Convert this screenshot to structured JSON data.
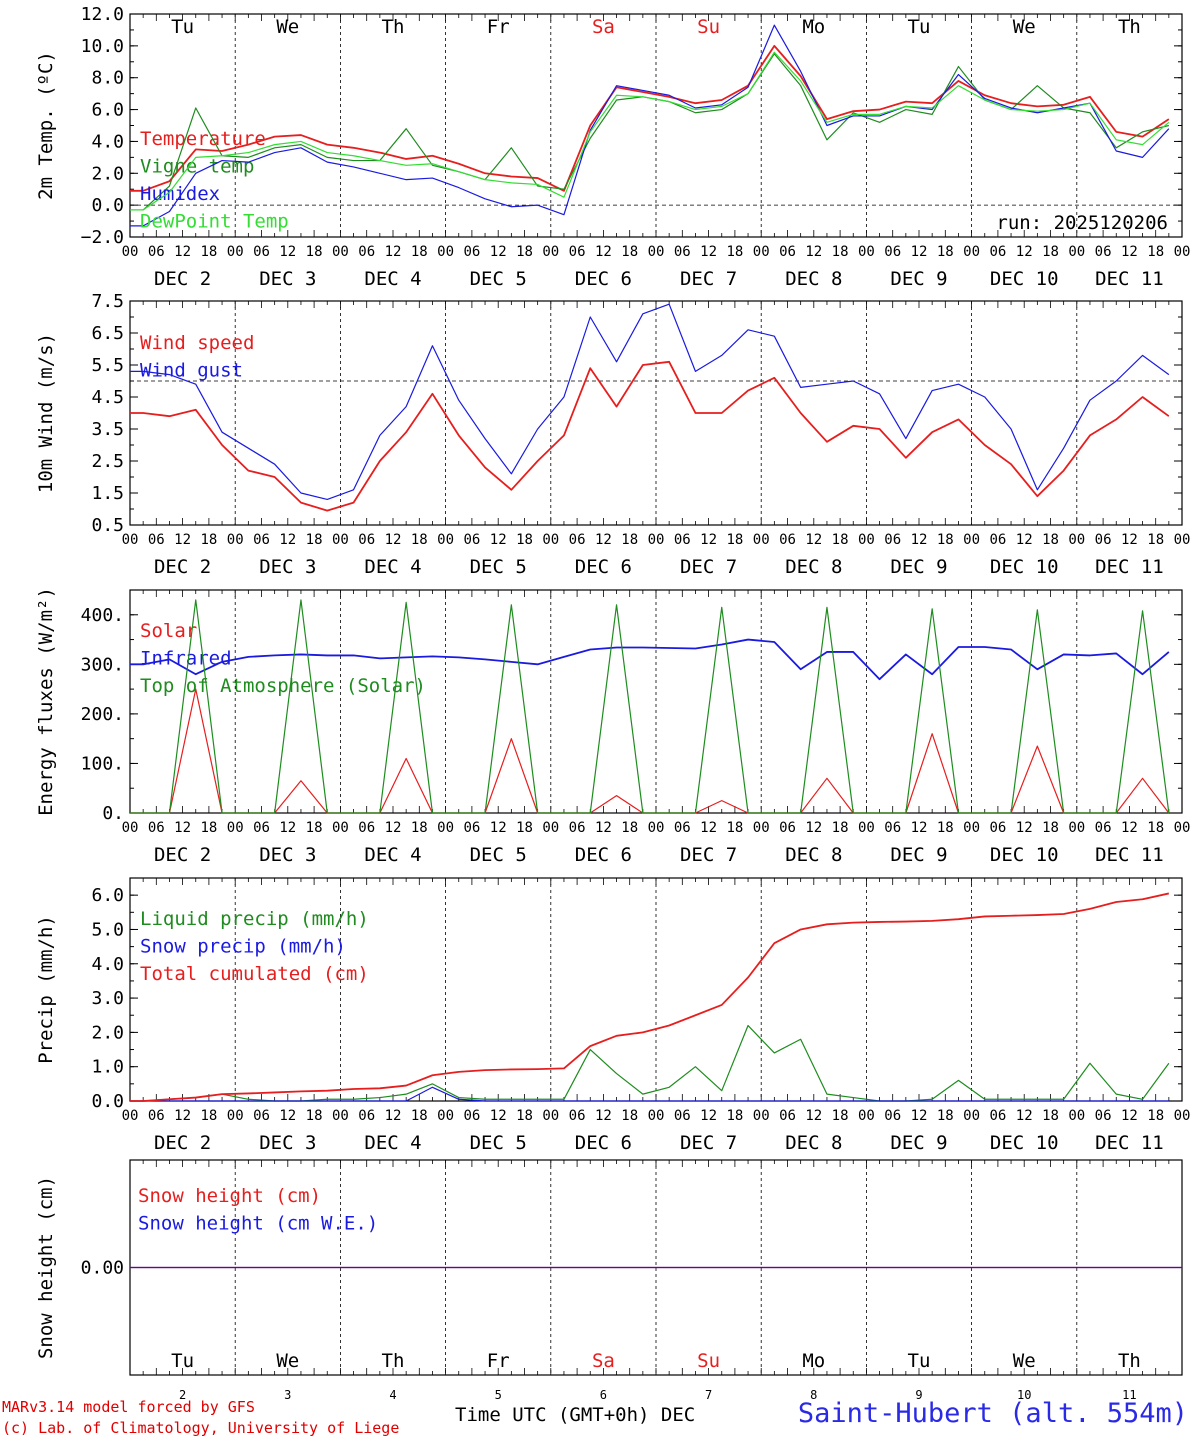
{
  "run_label": "run: 2025120206",
  "footer": {
    "credit_line1": "MARv3.14 model forced by GFS",
    "credit_line2": "(c) Lab. of Climatology, University of Liege",
    "xaxis_title": "Time UTC (GMT+0h) DEC",
    "station": "Saint-Hubert (alt. 554m)"
  },
  "colors": {
    "red": "#e61e1e",
    "blue": "#1a1ae0",
    "dark_green": "#1e8c1e",
    "light_green": "#33dd33",
    "weekend": "#e61e1e",
    "text": "#000000"
  },
  "chart_data": [
    {
      "id": "temperature",
      "type": "line",
      "ylabel": "2m Temp. (ºC)",
      "ylim": [
        -2,
        12
      ],
      "yticks": [
        "-2.0",
        "0.0",
        "2.0",
        "4.0",
        "6.0",
        "8.0",
        "10.0",
        "12.0"
      ],
      "reference_line": 0,
      "day_labels": [
        "Tu",
        "We",
        "Th",
        "Fr",
        "Sa",
        "Su",
        "Mo",
        "Tu",
        "We",
        "Th"
      ],
      "x_hours": [
        0,
        6,
        12,
        18,
        24,
        30,
        36,
        42,
        48,
        54,
        60,
        66,
        72,
        78,
        84,
        90,
        96,
        102,
        108,
        114,
        120,
        126,
        132,
        138,
        144,
        150,
        156,
        162,
        168,
        174,
        180,
        186,
        192,
        198,
        204,
        210,
        216,
        222,
        228,
        234
      ],
      "series": [
        {
          "name": "Temperature",
          "color": "red",
          "values": [
            0.9,
            1.5,
            3.5,
            3.4,
            3.8,
            4.3,
            4.4,
            3.8,
            3.6,
            3.3,
            2.9,
            3.1,
            2.6,
            2.0,
            1.8,
            1.7,
            0.9,
            5.0,
            7.4,
            7.1,
            6.8,
            6.4,
            6.6,
            7.5,
            10.0,
            8.1,
            5.4,
            5.9,
            6.0,
            6.5,
            6.4,
            7.8,
            6.9,
            6.4,
            6.2,
            6.3,
            6.8,
            4.6,
            4.3,
            5.4
          ]
        },
        {
          "name": "Vigne temp",
          "color": "dark_green",
          "values": [
            -0.3,
            1.2,
            6.1,
            3.1,
            3.0,
            3.6,
            3.8,
            3.0,
            2.8,
            2.8,
            4.8,
            2.5,
            2.1,
            1.6,
            3.6,
            1.2,
            1.0,
            4.2,
            6.6,
            6.8,
            6.5,
            5.8,
            6.0,
            7.0,
            9.5,
            7.5,
            4.1,
            5.8,
            5.2,
            6.0,
            5.7,
            8.7,
            6.6,
            6.0,
            7.5,
            6.1,
            5.8,
            3.6,
            4.6,
            5.0
          ]
        },
        {
          "name": "Humidex",
          "color": "blue",
          "values": [
            -1.3,
            -0.4,
            2.0,
            2.8,
            2.7,
            3.3,
            3.6,
            2.7,
            2.4,
            2.0,
            1.6,
            1.7,
            1.1,
            0.4,
            -0.1,
            0.0,
            -0.6,
            4.7,
            7.5,
            7.2,
            6.9,
            6.1,
            6.3,
            7.4,
            11.3,
            8.4,
            5.0,
            5.6,
            5.6,
            6.2,
            6.0,
            8.2,
            6.7,
            6.1,
            5.8,
            6.1,
            6.4,
            3.4,
            3.0,
            4.8
          ]
        },
        {
          "name": "DewPoint Temp",
          "color": "light_green",
          "values": [
            -0.3,
            0.8,
            3.0,
            3.1,
            3.3,
            3.8,
            4.0,
            3.3,
            3.1,
            2.8,
            2.5,
            2.6,
            2.1,
            1.6,
            1.4,
            1.3,
            0.5,
            4.6,
            6.9,
            6.8,
            6.5,
            6.0,
            6.2,
            7.0,
            9.6,
            7.8,
            5.2,
            5.7,
            5.7,
            6.2,
            6.1,
            7.5,
            6.6,
            6.0,
            5.9,
            6.0,
            6.4,
            4.1,
            3.8,
            5.2
          ]
        }
      ]
    },
    {
      "id": "wind",
      "type": "line",
      "ylabel": "10m Wind (m/s)",
      "ylim": [
        0.5,
        7.5
      ],
      "yticks": [
        "0.5",
        "1.5",
        "2.5",
        "3.5",
        "4.5",
        "5.5",
        "6.5",
        "7.5"
      ],
      "reference_line": 5.0,
      "x_hours": [
        0,
        6,
        12,
        18,
        24,
        30,
        36,
        42,
        48,
        54,
        60,
        66,
        72,
        78,
        84,
        90,
        96,
        102,
        108,
        114,
        120,
        126,
        132,
        138,
        144,
        150,
        156,
        162,
        168,
        174,
        180,
        186,
        192,
        198,
        204,
        210,
        216,
        222,
        228,
        234
      ],
      "series": [
        {
          "name": "Wind speed",
          "color": "red",
          "values": [
            4.0,
            3.9,
            4.1,
            3.0,
            2.2,
            2.0,
            1.2,
            0.95,
            1.2,
            2.5,
            3.4,
            4.6,
            3.3,
            2.3,
            1.6,
            2.5,
            3.3,
            5.4,
            4.2,
            5.5,
            5.6,
            4.0,
            4.0,
            4.7,
            5.1,
            4.0,
            3.1,
            3.6,
            3.5,
            2.6,
            3.4,
            3.8,
            3.0,
            2.4,
            1.4,
            2.2,
            3.3,
            3.8,
            4.5,
            3.9
          ]
        },
        {
          "name": "Wind gust",
          "color": "blue",
          "values": [
            5.3,
            5.2,
            4.9,
            3.4,
            2.9,
            2.4,
            1.5,
            1.3,
            1.6,
            3.3,
            4.2,
            6.1,
            4.4,
            3.2,
            2.1,
            3.5,
            4.5,
            7.0,
            5.6,
            7.1,
            7.4,
            5.3,
            5.8,
            6.6,
            6.4,
            4.8,
            4.9,
            5.0,
            4.6,
            3.2,
            4.7,
            4.9,
            4.5,
            3.5,
            1.6,
            2.9,
            4.4,
            5.0,
            5.8,
            5.2
          ]
        }
      ]
    },
    {
      "id": "energy",
      "type": "line",
      "ylabel": "Energy fluxes (W/m²)",
      "ylim": [
        0,
        450
      ],
      "yticks": [
        "0.",
        "100.",
        "200.",
        "300.",
        "400."
      ],
      "x_hours": [
        0,
        6,
        12,
        18,
        24,
        30,
        36,
        42,
        48,
        54,
        60,
        66,
        72,
        78,
        84,
        90,
        96,
        102,
        108,
        114,
        120,
        126,
        132,
        138,
        144,
        150,
        156,
        162,
        168,
        174,
        180,
        186,
        192,
        198,
        204,
        210,
        216,
        222,
        228,
        234
      ],
      "series": [
        {
          "name": "Solar",
          "color": "red",
          "values": [
            0,
            0,
            250,
            0,
            0,
            0,
            65,
            0,
            0,
            0,
            110,
            0,
            0,
            0,
            150,
            0,
            0,
            0,
            35,
            0,
            0,
            0,
            25,
            0,
            0,
            0,
            70,
            0,
            0,
            0,
            160,
            0,
            0,
            0,
            135,
            0,
            0,
            0,
            70,
            0
          ]
        },
        {
          "name": "Infrared",
          "color": "blue",
          "values": [
            300,
            310,
            280,
            305,
            315,
            318,
            320,
            318,
            318,
            312,
            314,
            316,
            314,
            310,
            305,
            300,
            315,
            330,
            334,
            334,
            333,
            332,
            340,
            350,
            345,
            290,
            325,
            325,
            270,
            320,
            280,
            335,
            335,
            330,
            290,
            320,
            318,
            322,
            280,
            325
          ]
        },
        {
          "name": "Top of Atmosphere (Solar)",
          "color": "dark_green",
          "values": [
            0,
            0,
            430,
            0,
            0,
            0,
            430,
            0,
            0,
            0,
            425,
            0,
            0,
            0,
            420,
            0,
            0,
            0,
            420,
            0,
            0,
            0,
            415,
            0,
            0,
            0,
            415,
            0,
            0,
            0,
            412,
            0,
            0,
            0,
            410,
            0,
            0,
            0,
            408,
            0
          ]
        }
      ]
    },
    {
      "id": "precip",
      "type": "line",
      "ylabel": "Precip (mm/h)",
      "ylim": [
        0,
        6.5
      ],
      "yticks": [
        "0.0",
        "1.0",
        "2.0",
        "3.0",
        "4.0",
        "5.0",
        "6.0"
      ],
      "x_hours": [
        0,
        6,
        12,
        18,
        24,
        30,
        36,
        42,
        48,
        54,
        60,
        66,
        72,
        78,
        84,
        90,
        96,
        102,
        108,
        114,
        120,
        126,
        132,
        138,
        144,
        150,
        156,
        162,
        168,
        174,
        180,
        186,
        192,
        198,
        204,
        210,
        216,
        222,
        228,
        234
      ],
      "series": [
        {
          "name": "Liquid precip (mm/h)",
          "color": "dark_green",
          "values": [
            0,
            0.05,
            0.1,
            0.2,
            0.05,
            0,
            0,
            0.05,
            0.05,
            0.1,
            0.2,
            0.5,
            0.1,
            0.05,
            0.05,
            0.05,
            0.05,
            1.5,
            0.8,
            0.2,
            0.4,
            1.0,
            0.3,
            2.2,
            1.4,
            1.8,
            0.2,
            0.1,
            0,
            0,
            0.05,
            0.6,
            0.05,
            0.05,
            0.05,
            0.05,
            1.1,
            0.2,
            0.05,
            1.1
          ]
        },
        {
          "name": "Snow precip (mm/h)",
          "color": "blue",
          "values": [
            0,
            0,
            0,
            0,
            0,
            0,
            0,
            0,
            0,
            0,
            0,
            0.4,
            0.05,
            0,
            0,
            0,
            0,
            0,
            0,
            0,
            0,
            0,
            0,
            0,
            0,
            0,
            0,
            0,
            0,
            0,
            0,
            0,
            0,
            0,
            0,
            0,
            0,
            0,
            0,
            0
          ]
        },
        {
          "name": "Total cumulated (cm)",
          "color": "red",
          "values": [
            0,
            0.05,
            0.1,
            0.2,
            0.22,
            0.25,
            0.28,
            0.3,
            0.35,
            0.37,
            0.45,
            0.75,
            0.85,
            0.9,
            0.92,
            0.93,
            0.95,
            1.6,
            1.9,
            2.0,
            2.2,
            2.5,
            2.8,
            3.6,
            4.6,
            5.0,
            5.15,
            5.2,
            5.22,
            5.23,
            5.25,
            5.3,
            5.38,
            5.4,
            5.42,
            5.45,
            5.6,
            5.8,
            5.88,
            6.05
          ]
        }
      ]
    },
    {
      "id": "snow",
      "type": "line",
      "ylabel": "Snow height (cm)",
      "ylim": [
        -1,
        1
      ],
      "yticks": [
        "0.00"
      ],
      "day_labels": [
        "Tu",
        "We",
        "Th",
        "Fr",
        "Sa",
        "Su",
        "Mo",
        "Tu",
        "We",
        "Th"
      ],
      "day_numbers": [
        "2",
        "3",
        "4",
        "5",
        "6",
        "7",
        "8",
        "9",
        "10",
        "11"
      ],
      "series": [
        {
          "name": "Snow height (cm)",
          "color": "red",
          "values": [
            0,
            0
          ]
        },
        {
          "name": "Snow height (cm W.E.)",
          "color": "blue",
          "values": [
            0,
            0
          ]
        }
      ]
    }
  ],
  "x_axis": {
    "hour_ticks": [
      "00",
      "06",
      "12",
      "18"
    ],
    "date_labels": [
      "DEC 2",
      "DEC 3",
      "DEC 4",
      "DEC 5",
      "DEC 6",
      "DEC 7",
      "DEC 8",
      "DEC 9",
      "DEC 10",
      "DEC 11"
    ],
    "weekend_days": [
      "Sa",
      "Su"
    ]
  }
}
